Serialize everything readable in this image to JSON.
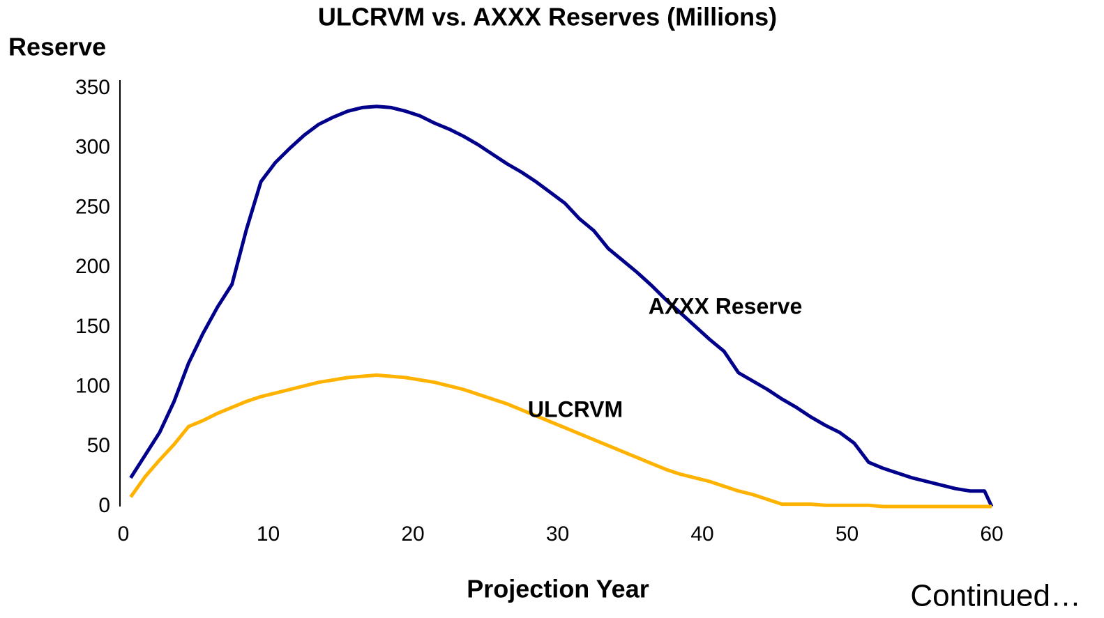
{
  "chart_data": {
    "type": "line",
    "title": "ULCRVM vs. AXXX Reserves (Millions)",
    "y_label": "Reserve",
    "x_label": "Projection Year",
    "footer": "Continued…",
    "x": [
      0.5,
      1.5,
      2.5,
      3.5,
      4.5,
      5.5,
      6.5,
      7.5,
      8.5,
      9.5,
      10.5,
      11.5,
      12.5,
      13.5,
      14.5,
      15.5,
      16.5,
      17.5,
      18.5,
      19.5,
      20.5,
      21.5,
      22.5,
      23.5,
      24.5,
      25.5,
      26.5,
      27.5,
      28.5,
      29.5,
      30.5,
      31.5,
      32.5,
      33.5,
      34.5,
      35.5,
      36.5,
      37.5,
      38.5,
      39.5,
      40.5,
      41.5,
      42.5,
      43.5,
      44.5,
      45.5,
      46.5,
      47.5,
      48.5,
      49.5,
      50.5,
      51.5,
      52.5,
      53.5,
      54.5,
      55.5,
      56.5,
      57.5,
      58.5,
      59.5,
      60
    ],
    "series": [
      {
        "name": "AXXX Reserve",
        "color": "#00008b",
        "values": [
          24,
          43,
          62,
          88,
          120,
          145,
          167,
          186,
          232,
          272,
          288,
          300,
          311,
          320,
          326,
          331,
          334,
          335,
          334,
          331,
          327,
          321,
          316,
          310,
          303,
          295,
          287,
          280,
          272,
          263,
          254,
          241,
          231,
          216,
          206,
          196,
          185,
          173,
          162,
          151,
          140,
          130,
          112,
          105,
          98,
          90,
          83,
          75,
          68,
          62,
          53,
          37,
          32,
          28,
          24,
          21,
          18,
          15,
          13,
          13,
          0
        ]
      },
      {
        "name": "ULCRVM",
        "color": "#ffb300",
        "values": [
          8,
          25,
          39,
          52,
          67,
          72,
          78,
          83,
          88,
          92,
          95,
          98,
          101,
          104,
          106,
          108,
          109,
          110,
          109,
          108,
          106,
          104,
          101,
          98,
          94,
          90,
          86,
          81,
          76,
          71,
          66,
          61,
          56,
          51,
          46,
          41,
          36,
          31,
          27,
          24,
          21,
          17,
          13,
          10,
          6,
          2,
          2,
          2,
          1,
          1,
          1,
          1,
          0,
          0,
          0,
          0,
          0,
          0,
          0,
          0,
          0
        ]
      }
    ],
    "xlim": [
      0,
      60
    ],
    "xticks": [
      0,
      10,
      20,
      30,
      40,
      50,
      60
    ],
    "ylim": [
      0,
      350
    ],
    "yticks": [
      0,
      50,
      100,
      150,
      200,
      250,
      300,
      350
    ]
  }
}
